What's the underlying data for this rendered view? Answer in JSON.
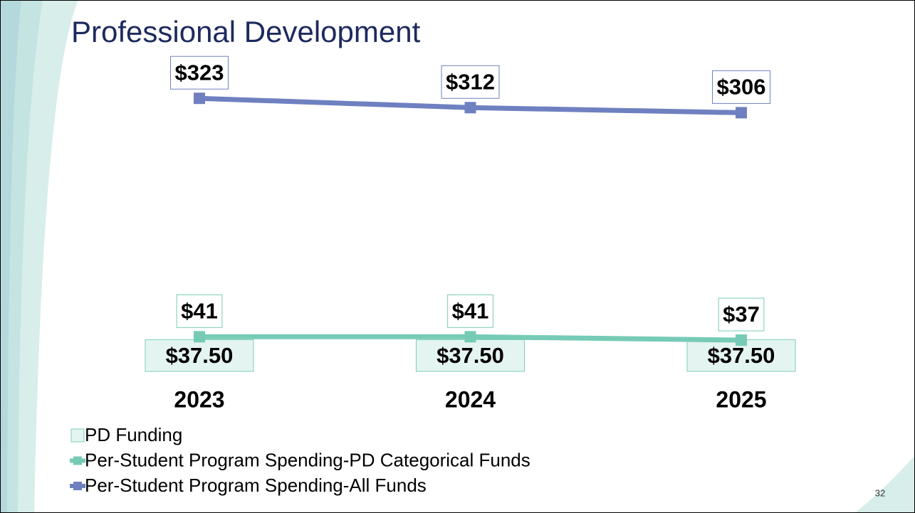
{
  "chart_data": {
    "type": "line",
    "title": "Professional Development",
    "categories": [
      "2023",
      "2024",
      "2025"
    ],
    "ylim": [
      0,
      340
    ],
    "series": [
      {
        "name": "PD Funding",
        "type": "bar",
        "color": "#e4f4f0",
        "edge": "#7ccfbd",
        "values": [
          37.5,
          37.5,
          37.5
        ],
        "value_labels": [
          "$37.50",
          "$37.50",
          "$37.50"
        ]
      },
      {
        "name": "Per-Student Program Spending-PD Categorical Funds",
        "type": "line",
        "color": "#76cbb6",
        "values": [
          41,
          41,
          37
        ],
        "value_labels": [
          "$41",
          "$41",
          "$37"
        ]
      },
      {
        "name": "Per-Student Program Spending-All Funds",
        "type": "line",
        "color": "#6f80c1",
        "values": [
          323,
          312,
          306
        ],
        "value_labels": [
          "$323",
          "$312",
          "$306"
        ]
      }
    ],
    "page_number": "32"
  }
}
